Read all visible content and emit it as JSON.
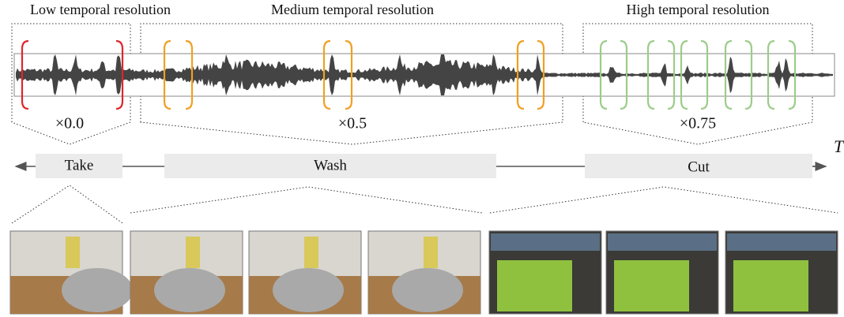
{
  "resolutions": [
    {
      "label": "Low temporal resolution",
      "factor": "×0.0"
    },
    {
      "label": "Medium temporal resolution",
      "factor": "×0.5"
    },
    {
      "label": "High temporal resolution",
      "factor": "×0.75"
    }
  ],
  "actions": [
    "Take",
    "Wash",
    "Cut"
  ],
  "axis_label": "T"
}
